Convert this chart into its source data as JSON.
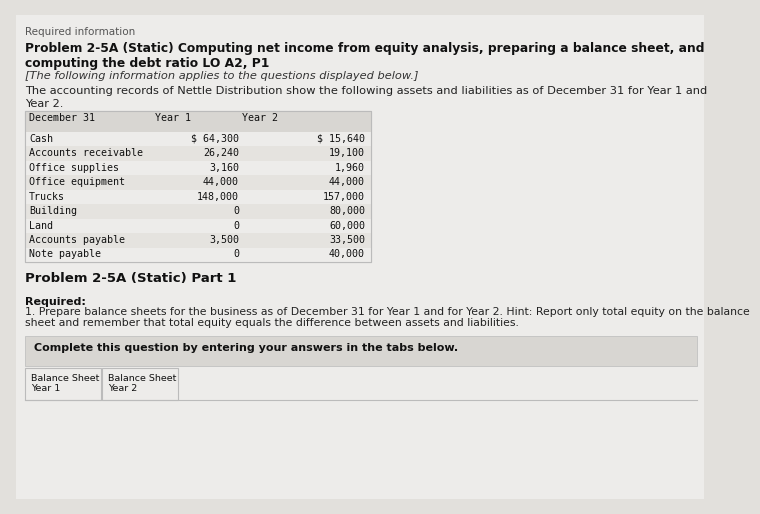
{
  "bg_color": "#e2e0dc",
  "content_bg": "#edecea",
  "required_info_label": "Required information",
  "title_line1": "Problem 2-5A (Static) Computing net income from equity analysis, preparing a balance sheet, and",
  "title_line2": "computing the debt ratio LO A2, P1",
  "italic_note": "[The following information applies to the questions displayed below.]",
  "body_line1": "The accounting records of Nettle Distribution show the following assets and liabilities as of December 31 for Year 1 and",
  "body_line2": "Year 2.",
  "table_header": [
    "December 31",
    "Year 1",
    "Year 2"
  ],
  "table_rows": [
    [
      "Cash",
      "$ 64,300",
      "$ 15,640"
    ],
    [
      "Accounts receivable",
      "26,240",
      "19,100"
    ],
    [
      "Office supplies",
      "3,160",
      "1,960"
    ],
    [
      "Office equipment",
      "44,000",
      "44,000"
    ],
    [
      "Trucks",
      "148,000",
      "157,000"
    ],
    [
      "Building",
      "0",
      "80,000"
    ],
    [
      "Land",
      "0",
      "60,000"
    ],
    [
      "Accounts payable",
      "3,500",
      "33,500"
    ],
    [
      "Note payable",
      "0",
      "40,000"
    ]
  ],
  "table_border_color": "#bbbbbb",
  "table_header_bg": "#d8d6d2",
  "table_row_bg1": "#edecea",
  "table_row_bg2": "#e5e3df",
  "part_label": "Problem 2-5A (Static) Part 1",
  "required_label": "Required:",
  "req_line1": "1. Prepare balance sheets for the business as of December 31 for Year 1 and for Year 2. Hint: Report only total equity on the balance",
  "req_line2": "sheet and remember that total equity equals the difference between assets and liabilities.",
  "complete_box_text": "Complete this question by entering your answers in the tabs below.",
  "complete_box_bg": "#d8d6d2",
  "tab_bg": "#edecea",
  "tab_border": "#bbbbbb",
  "tab1_line1": "Balance Sheet",
  "tab1_line2": "Year 1",
  "tab2_line1": "Balance Sheet",
  "tab2_line2": "Year 2"
}
